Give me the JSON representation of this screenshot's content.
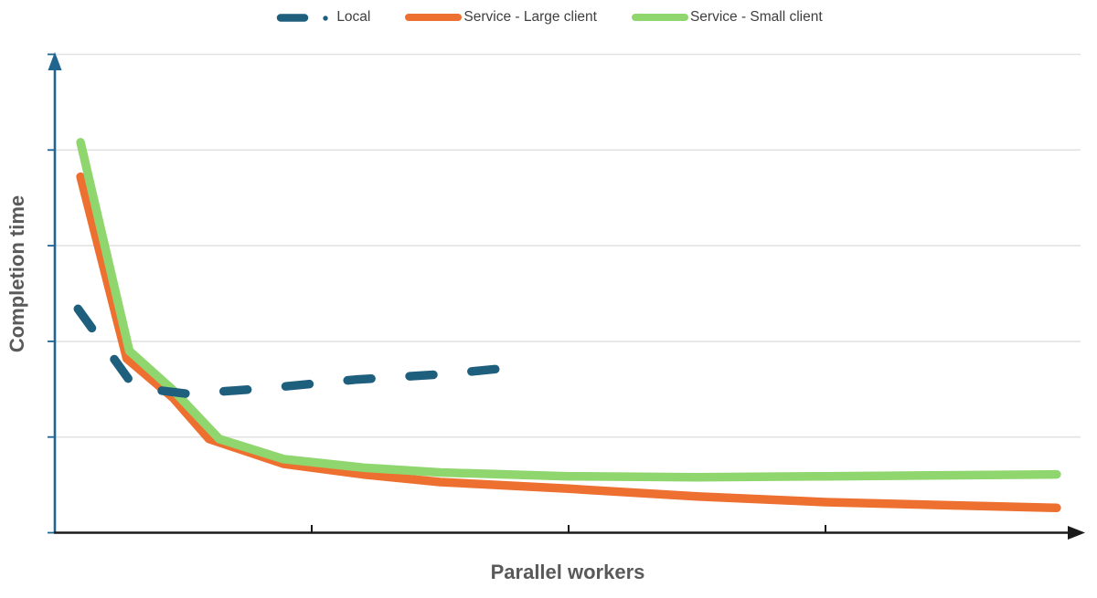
{
  "colors": {
    "local": "#1F5F7E",
    "service_large": "#ED7031",
    "service_small": "#8FD66E",
    "gridline": "#E2E2E2",
    "x_axis": "#1A1A1A",
    "y_axis": "#206490",
    "axis_label_text": "#595959",
    "legend_text": "#3F3F3F",
    "background": "#FFFFFF"
  },
  "legend": {
    "position": "top-center",
    "items": [
      {
        "label": "Local",
        "style": "dash-dot",
        "color_key": "local"
      },
      {
        "label": "Service - Large client",
        "style": "solid",
        "color_key": "service_large"
      },
      {
        "label": "Service - Small client",
        "style": "solid",
        "color_key": "service_small"
      }
    ]
  },
  "axis_labels": {
    "x": "Parallel workers",
    "y": "Completion time"
  },
  "chart_data": {
    "type": "line",
    "title": "",
    "xlabel": "Parallel workers",
    "ylabel": "Completion time",
    "legend_position": "top-center",
    "grid": "horizontal-only",
    "axis_tick_labels_visible": false,
    "x_axis": {
      "unit": "unlabeled tick units",
      "range": [
        0,
        4
      ],
      "ticks_at": [
        1,
        2,
        3
      ],
      "arrow": true
    },
    "y_axis": {
      "unit": "unlabeled gridline units",
      "range": [
        0,
        5
      ],
      "gridlines_at": [
        1,
        2,
        3,
        4,
        5
      ],
      "ticks_at": [
        0,
        1,
        2,
        3,
        4,
        5
      ],
      "arrow": true
    },
    "series": [
      {
        "name": "Local",
        "color": "#1F5F7E",
        "line_style": "dashed",
        "stroke_width": 9.5,
        "note": "drops steeply, bottoms out, then rises slightly; ends near x=1.8 (does not extend to right edge)",
        "points": [
          [
            0.09,
            2.34
          ],
          [
            0.31,
            1.52
          ],
          [
            0.52,
            1.45
          ],
          [
            0.82,
            1.51
          ],
          [
            1.17,
            1.6
          ],
          [
            1.53,
            1.66
          ],
          [
            1.79,
            1.73
          ]
        ]
      },
      {
        "name": "Service - Large client",
        "color": "#ED7031",
        "line_style": "solid",
        "stroke_width": 9.5,
        "note": "starts below Small client, keeps decreasing slowly to the right edge",
        "points": [
          [
            0.1,
            3.72
          ],
          [
            0.28,
            1.82
          ],
          [
            0.46,
            1.41
          ],
          [
            0.6,
            0.98
          ],
          [
            0.89,
            0.72
          ],
          [
            1.2,
            0.61
          ],
          [
            1.5,
            0.53
          ],
          [
            2.0,
            0.46
          ],
          [
            2.5,
            0.38
          ],
          [
            3.0,
            0.32
          ],
          [
            3.9,
            0.26
          ]
        ]
      },
      {
        "name": "Service - Small client",
        "color": "#8FD66E",
        "line_style": "solid",
        "stroke_width": 9.5,
        "note": "starts highest, flattens and stays nearly constant to the right edge",
        "points": [
          [
            0.1,
            4.08
          ],
          [
            0.29,
            1.9
          ],
          [
            0.46,
            1.49
          ],
          [
            0.64,
            0.98
          ],
          [
            0.89,
            0.77
          ],
          [
            1.2,
            0.68
          ],
          [
            1.5,
            0.63
          ],
          [
            2.0,
            0.59
          ],
          [
            2.5,
            0.58
          ],
          [
            3.0,
            0.59
          ],
          [
            3.9,
            0.61
          ]
        ]
      }
    ]
  }
}
